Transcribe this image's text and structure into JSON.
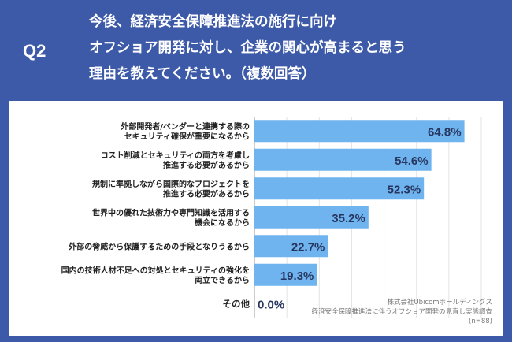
{
  "question": {
    "label": "Q2",
    "lines": [
      "今後、経済安全保障推進法の施行に向け",
      "オフショア開発に対し、企業の関心が高まると思う",
      "理由を教えてください。（複数回答）"
    ]
  },
  "chart_data": {
    "type": "bar",
    "orientation": "horizontal",
    "categories": [
      [
        "外部開発者/ベンダーと連携する際の",
        "セキュリティ確保が重要になるから"
      ],
      [
        "コスト削減とセキュリティの両方を考慮し",
        "推進する必要があるから"
      ],
      [
        "規制に準拠しながら国際的なプロジェクトを",
        "推進する必要があるから"
      ],
      [
        "世界中の優れた技術力や専門知識を活用する",
        "機会になるから"
      ],
      [
        "外部の脅威から保護するための手段となりうるから"
      ],
      [
        "国内の技術人材不足への対処とセキュリティの強化を",
        "両立できるから"
      ],
      [
        "その他"
      ]
    ],
    "values": [
      64.8,
      54.6,
      52.3,
      35.2,
      22.7,
      19.3,
      0.0
    ],
    "value_labels": [
      "64.8%",
      "54.6%",
      "52.3%",
      "35.2%",
      "22.7%",
      "19.3%",
      "0.0%"
    ],
    "xlim": [
      0,
      70
    ],
    "bar_color": "#6fb4ef",
    "grid": true
  },
  "footer": {
    "lines": [
      "株式会社Ubicomホールディングス",
      "経済安全保障推進法に伴うオフショア開発の見直し実態調査",
      "(n=88)"
    ]
  },
  "colors": {
    "background": "#3d5aa8",
    "bar": "#6fb4ef",
    "value_text": "#27365f"
  }
}
